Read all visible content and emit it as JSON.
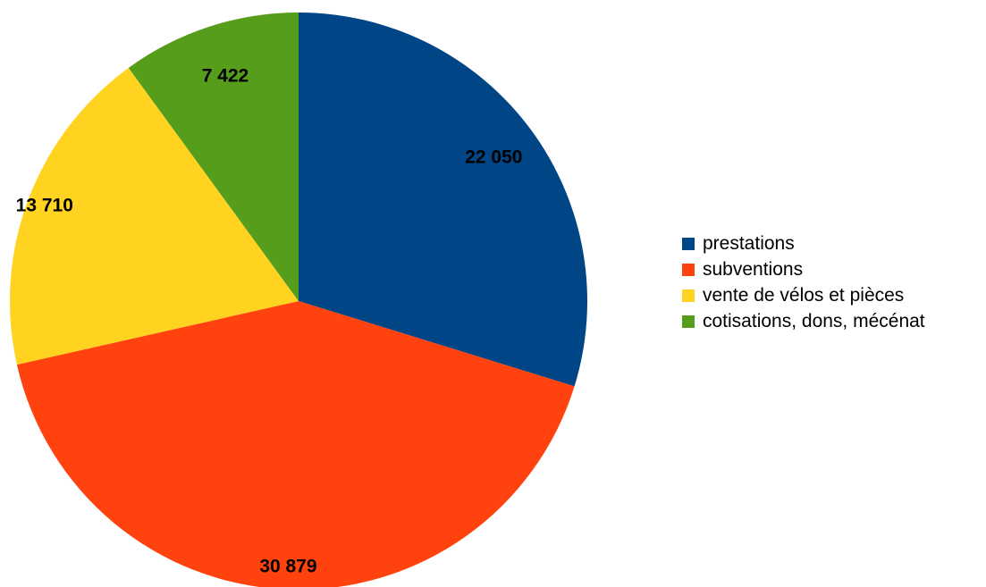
{
  "chart_data": {
    "type": "pie",
    "categories": [
      "prestations",
      "subventions",
      "vente de vélos et pièces",
      "cotisations, dons, mécénat"
    ],
    "values": [
      22050,
      30879,
      13710,
      7422
    ],
    "labels": [
      "22 050",
      "30 879",
      "13 710",
      "7 422"
    ],
    "colors": [
      "#004586",
      "#ff420e",
      "#ffd320",
      "#579d1c"
    ],
    "legend_position": "right",
    "start": "top, clockwise"
  }
}
